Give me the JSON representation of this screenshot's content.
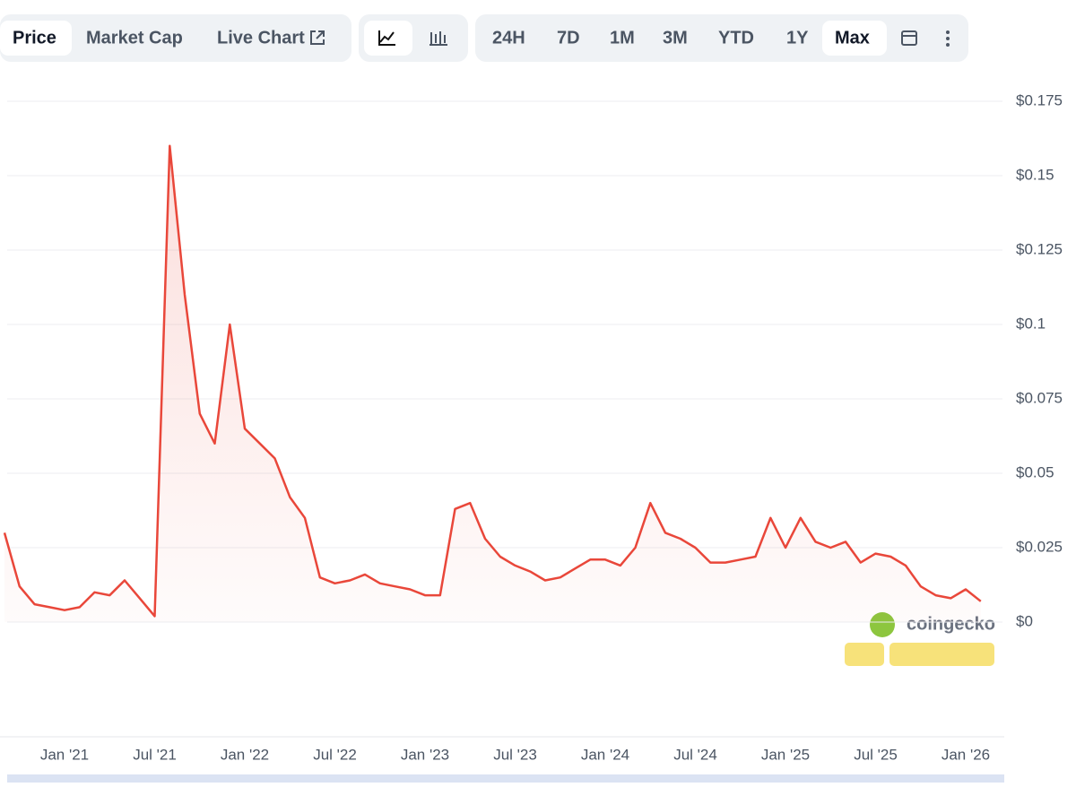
{
  "toolbar": {
    "views": [
      "Price",
      "Market Cap",
      "Live Chart"
    ],
    "active_view": "Price",
    "ranges": [
      "24H",
      "7D",
      "1M",
      "3M",
      "YTD",
      "1Y",
      "Max"
    ],
    "active_range": "Max"
  },
  "watermark": "coingecko",
  "chart_data": {
    "type": "line",
    "x": [
      "2020-09",
      "2020-10",
      "2020-11",
      "2020-12",
      "2021-01",
      "2021-02",
      "2021-03",
      "2021-04",
      "2021-05",
      "2021-06",
      "2021-07",
      "2021-08",
      "2021-09",
      "2021-10",
      "2021-11",
      "2021-12",
      "2022-01",
      "2022-02",
      "2022-03",
      "2022-04",
      "2022-05",
      "2022-06",
      "2022-07",
      "2022-08",
      "2022-09",
      "2022-10",
      "2022-11",
      "2022-12",
      "2023-01",
      "2023-02",
      "2023-03",
      "2023-04",
      "2023-05",
      "2023-06",
      "2023-07",
      "2023-08",
      "2023-09",
      "2023-10",
      "2023-11",
      "2023-12",
      "2024-01",
      "2024-02",
      "2024-03",
      "2024-04",
      "2024-05",
      "2024-06",
      "2024-07",
      "2024-08",
      "2024-09",
      "2024-10",
      "2024-11",
      "2024-12",
      "2025-01",
      "2025-02",
      "2025-03",
      "2025-04",
      "2025-05",
      "2025-06",
      "2025-07",
      "2025-08",
      "2025-09",
      "2025-10",
      "2025-11",
      "2025-12",
      "2026-01",
      "2026-02"
    ],
    "series": [
      {
        "name": "Price",
        "color": "#e9473a",
        "values": [
          0.03,
          0.012,
          0.006,
          0.005,
          0.004,
          0.005,
          0.01,
          0.009,
          0.014,
          0.008,
          0.002,
          0.16,
          0.11,
          0.07,
          0.06,
          0.1,
          0.065,
          0.06,
          0.055,
          0.042,
          0.035,
          0.015,
          0.013,
          0.014,
          0.016,
          0.013,
          0.012,
          0.011,
          0.009,
          0.009,
          0.038,
          0.04,
          0.028,
          0.022,
          0.019,
          0.017,
          0.014,
          0.015,
          0.018,
          0.021,
          0.021,
          0.019,
          0.025,
          0.04,
          0.03,
          0.028,
          0.025,
          0.02,
          0.02,
          0.021,
          0.022,
          0.035,
          0.025,
          0.035,
          0.027,
          0.025,
          0.027,
          0.02,
          0.023,
          0.022,
          0.019,
          0.012,
          0.009,
          0.008,
          0.011,
          0.007
        ]
      }
    ],
    "xticks": [
      {
        "value": "2021-01",
        "label": "Jan '21"
      },
      {
        "value": "2021-07",
        "label": "Jul '21"
      },
      {
        "value": "2022-01",
        "label": "Jan '22"
      },
      {
        "value": "2022-07",
        "label": "Jul '22"
      },
      {
        "value": "2023-01",
        "label": "Jan '23"
      },
      {
        "value": "2023-07",
        "label": "Jul '23"
      },
      {
        "value": "2024-01",
        "label": "Jan '24"
      },
      {
        "value": "2024-07",
        "label": "Jul '24"
      },
      {
        "value": "2025-01",
        "label": "Jan '25"
      },
      {
        "value": "2025-07",
        "label": "Jul '25"
      },
      {
        "value": "2026-01",
        "label": "Jan '26"
      }
    ],
    "ylim": [
      0,
      0.175
    ],
    "yticks": [
      {
        "value": 0,
        "label": "$0"
      },
      {
        "value": 0.025,
        "label": "$0.025"
      },
      {
        "value": 0.05,
        "label": "$0.05"
      },
      {
        "value": 0.075,
        "label": "$0.075"
      },
      {
        "value": 0.1,
        "label": "$0.1"
      },
      {
        "value": 0.125,
        "label": "$0.125"
      },
      {
        "value": 0.15,
        "label": "$0.15"
      },
      {
        "value": 0.175,
        "label": "$0.175"
      }
    ],
    "grid": true
  }
}
